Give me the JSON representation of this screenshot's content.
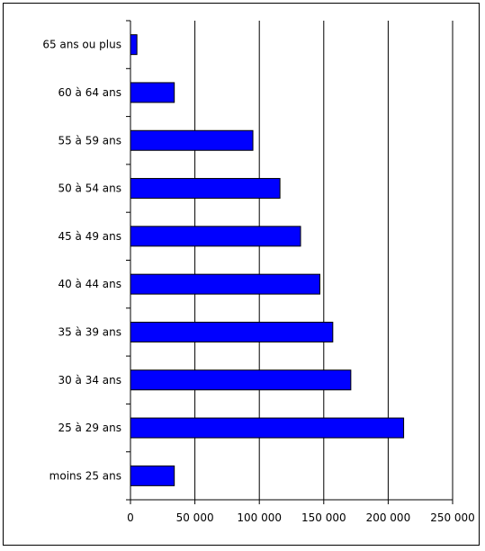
{
  "chart_data": {
    "type": "bar",
    "orientation": "horizontal",
    "categories": [
      "moins 25 ans",
      "25 à 29 ans",
      "30 à 34 ans",
      "35 à 39 ans",
      "40 à 44 ans",
      "45 à 49 ans",
      "50 à 54 ans",
      "55 à 59 ans",
      "60 à 64 ans",
      "65 ans ou plus"
    ],
    "values": [
      34000,
      212000,
      171000,
      157000,
      147000,
      132000,
      116000,
      95000,
      34000,
      5000
    ],
    "xlim": [
      0,
      250000
    ],
    "xticks": [
      0,
      50000,
      100000,
      150000,
      200000,
      250000
    ],
    "xtick_labels": [
      "0",
      "50 000",
      "100 000",
      "150 000",
      "200 000",
      "250 000"
    ],
    "title": "",
    "xlabel": "",
    "ylabel": "",
    "grid": "vertical",
    "legend": "none",
    "colors": {
      "bar_fill": "#0000ff",
      "bar_stroke": "#000000",
      "grid": "#000000"
    }
  }
}
